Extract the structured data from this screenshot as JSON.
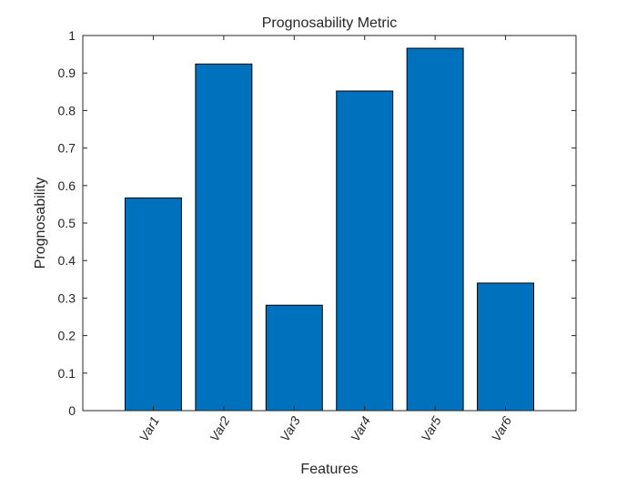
{
  "chart_data": {
    "type": "bar",
    "title": "Prognosability Metric",
    "xlabel": "Features",
    "ylabel": "Prognosability",
    "categories": [
      "Var1",
      "Var2",
      "Var3",
      "Var4",
      "Var5",
      "Var6"
    ],
    "values": [
      0.567,
      0.924,
      0.281,
      0.852,
      0.966,
      0.34
    ],
    "ylim": [
      0,
      1
    ],
    "yticks": [
      "0",
      "0.1",
      "0.2",
      "0.3",
      "0.4",
      "0.5",
      "0.6",
      "0.7",
      "0.8",
      "0.9",
      "1"
    ],
    "grid": false,
    "bar_color": "#0072BD",
    "edge_color": "#000000",
    "axis_color": "#262626"
  }
}
